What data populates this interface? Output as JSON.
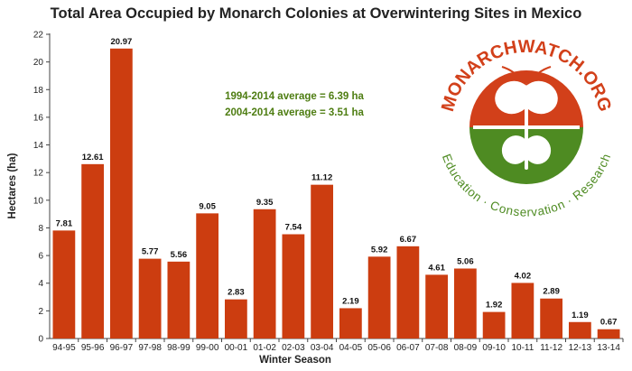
{
  "chart_data": {
    "type": "bar",
    "title": "Total Area Occupied by Monarch Colonies at Overwintering Sites in Mexico",
    "xlabel": "Winter Season",
    "ylabel": "Hectares (ha)",
    "ylim": [
      0,
      22
    ],
    "yticks": [
      0,
      2,
      4,
      6,
      8,
      10,
      12,
      14,
      16,
      18,
      20,
      22
    ],
    "grid": false,
    "bar_color": "#cc3d10",
    "categories": [
      "94-95",
      "95-96",
      "96-97",
      "97-98",
      "98-99",
      "99-00",
      "00-01",
      "01-02",
      "02-03",
      "03-04",
      "04-05",
      "05-06",
      "06-07",
      "07-08",
      "08-09",
      "09-10",
      "10-11",
      "11-12",
      "12-13",
      "13-14"
    ],
    "values": [
      7.81,
      12.61,
      20.97,
      5.77,
      5.56,
      9.05,
      2.83,
      9.35,
      7.54,
      11.12,
      2.19,
      5.92,
      6.67,
      4.61,
      5.06,
      1.92,
      4.02,
      2.89,
      1.19,
      0.67
    ],
    "value_labels": [
      "7.81",
      "12.61",
      "20.97",
      "5.77",
      "5.56",
      "9.05",
      "2.83",
      "9.35",
      "7.54",
      "11.12",
      "2.19",
      "5.92",
      "6.67",
      "4.61",
      "5.06",
      "1.92",
      "4.02",
      "2.89",
      "1.19",
      "0.67"
    ],
    "annotations": [
      {
        "text": "1994-2014 average = 6.39 ha",
        "color": "#4e7d12"
      },
      {
        "text": "2004-2014 average = 3.51 ha",
        "color": "#4e7d12"
      }
    ]
  },
  "logo": {
    "name_text": "MONARCHWATCH.ORG",
    "tagline_text": "Education · Conservation · Research",
    "colors": {
      "red": "#d2401a",
      "green": "#4e8b22"
    }
  }
}
